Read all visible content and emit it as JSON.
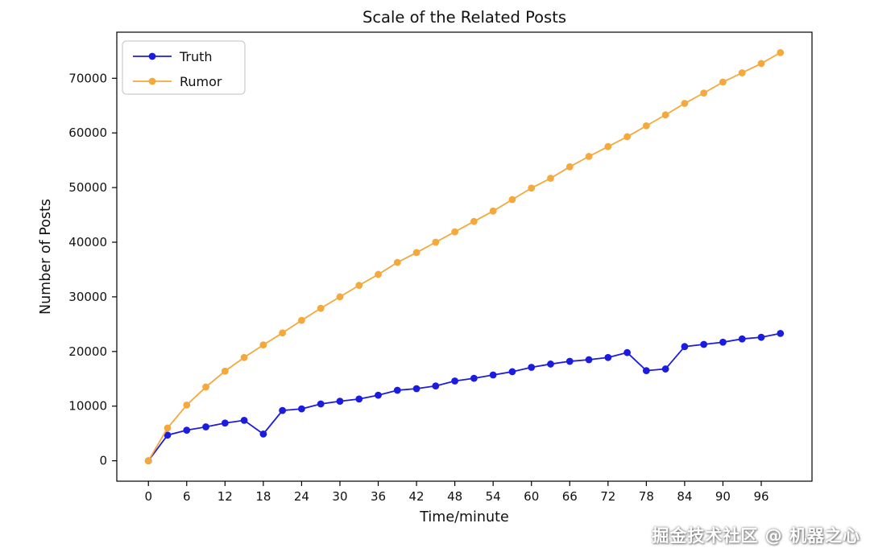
{
  "title": "Scale of the Related Posts",
  "watermark": "掘金技术社区 @ 机器之心",
  "chart_data": {
    "type": "line",
    "title": "Scale of the Related Posts",
    "xlabel": "Time/minute",
    "ylabel": "Number of Posts",
    "grid": false,
    "legend_position": "upper left",
    "xlim": [
      -4.95,
      103.95
    ],
    "ylim": [
      -3735,
      78435
    ],
    "xticks": [
      0,
      6,
      12,
      18,
      24,
      30,
      36,
      42,
      48,
      54,
      60,
      66,
      72,
      78,
      84,
      90,
      96
    ],
    "yticks": [
      0,
      10000,
      20000,
      30000,
      40000,
      50000,
      60000,
      70000
    ],
    "x": [
      0,
      3,
      6,
      9,
      12,
      15,
      18,
      21,
      24,
      27,
      30,
      33,
      36,
      39,
      42,
      45,
      48,
      51,
      54,
      57,
      60,
      63,
      66,
      69,
      72,
      75,
      78,
      81,
      84,
      87,
      90,
      93,
      96,
      99
    ],
    "series": [
      {
        "name": "Truth",
        "color": "#1c1ce0",
        "values": [
          0,
          4700,
          5600,
          6200,
          6900,
          7400,
          4900,
          9200,
          9500,
          10400,
          10900,
          11300,
          12000,
          12900,
          13200,
          13700,
          14600,
          15100,
          15700,
          16300,
          17100,
          17700,
          18200,
          18500,
          18900,
          19800,
          16500,
          16800,
          20900,
          21300,
          21700,
          22300,
          22600,
          23300
        ]
      },
      {
        "name": "Rumor",
        "color": "#f5a93c",
        "values": [
          0,
          6000,
          10200,
          13500,
          16400,
          18900,
          21200,
          23400,
          25700,
          27900,
          30000,
          32100,
          34100,
          36300,
          38100,
          40000,
          41900,
          43800,
          45700,
          47800,
          49900,
          51700,
          53800,
          55700,
          57500,
          59300,
          61300,
          63300,
          65400,
          67300,
          69300,
          71000,
          72700,
          74700
        ]
      }
    ]
  }
}
